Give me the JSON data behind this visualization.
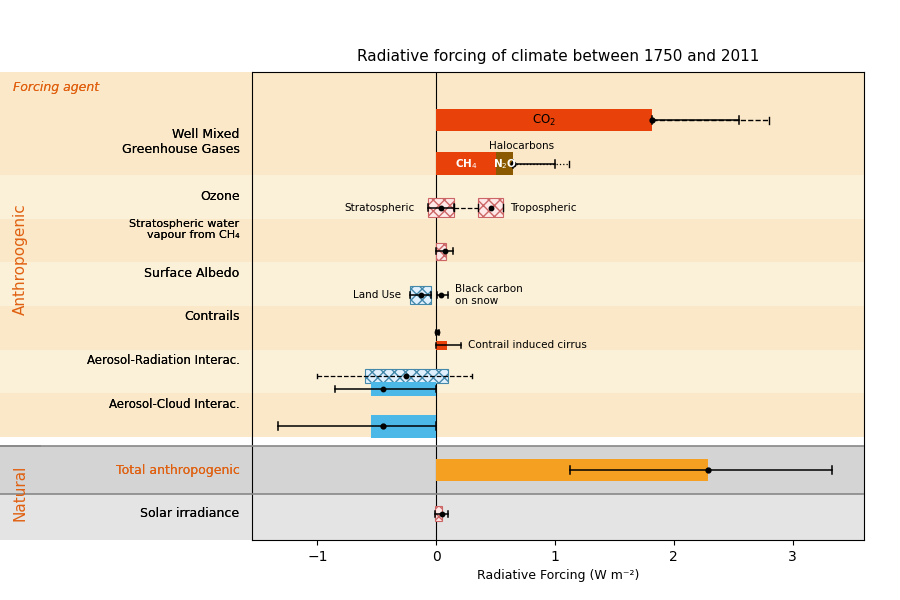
{
  "title": "Radiative forcing of climate between 1750 and 2011",
  "xlabel": "Radiative Forcing (W m⁻²)",
  "xlim": [
    -1.55,
    3.6
  ],
  "xticks": [
    -1,
    0,
    1,
    2,
    3
  ],
  "colors": {
    "orange_red": "#E8420A",
    "orange": "#F5A020",
    "blue": "#4BB8E8",
    "brown": "#8B5A00",
    "pink_outline": "#CC6666",
    "cyan_outline": "#4488AA",
    "label_orange": "#E06010",
    "bg_warm1": "#FAE8C8",
    "bg_warm2": "#FBF0D8",
    "bg_total": "#D8D8D8",
    "bg_solar": "#E8E8E8"
  },
  "rows": [
    {
      "y": 9.5,
      "label": "Well Mixed\nGreenhouse\nGases",
      "bg": "#FAE8C8"
    },
    {
      "y": 8.5,
      "label": "Ozone",
      "bg": "#FBF0D8"
    },
    {
      "y": 7.5,
      "label": "Stratospheric water\nvapour from CH₄",
      "bg": "#FAE8C8"
    },
    {
      "y": 6.5,
      "label": "Surface Albedo",
      "bg": "#FBF0D8"
    },
    {
      "y": 5.5,
      "label": "Contrails",
      "bg": "#FAE8C8"
    },
    {
      "y": 4.5,
      "label": "Aerosol-Radiation Interac.",
      "bg": "#FBF0D8"
    },
    {
      "y": 3.5,
      "label": "Aerosol-Cloud Interac.",
      "bg": "#FAE8C8"
    },
    {
      "y": 2.0,
      "label": "Total anthropogenic",
      "bg": "#D8D8D8"
    },
    {
      "y": 1.0,
      "label": "Solar irradiance",
      "bg": "#E8E8E8"
    }
  ]
}
